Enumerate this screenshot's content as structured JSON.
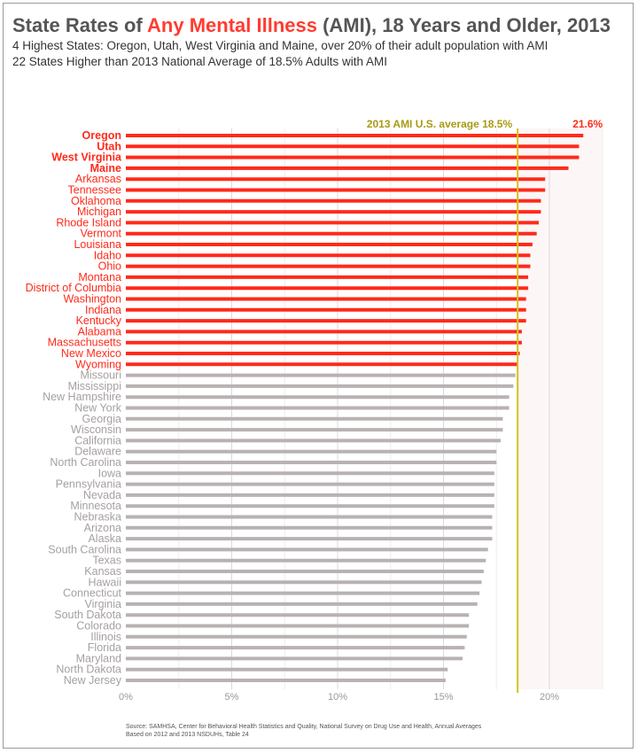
{
  "title": {
    "prefix": "State Rates of ",
    "highlight": "Any Mental Illness",
    "suffix": " (AMI), 18 Years and Older, 2013"
  },
  "subtitle_1": "4 Highest States: Oregon, Utah, West Virginia and Maine, over 20% of their adult population with AMI",
  "subtitle_2": "22 States Higher than 2013 National Average of 18.5% Adults with AMI",
  "source": "Source: SAMHSA, Center for Behavioral Health Statistics and Quality, National Survey on Drug Use and Health, Annual Averages Based on 2012 and 2013 NSDUHs, Table 24",
  "colors": {
    "above_average": "#ff2a1a",
    "below_average": "#b9b2b2",
    "average_line": "#d4c21a",
    "average_label": "#a89a14"
  },
  "chart_data": {
    "type": "bar",
    "orientation": "horizontal",
    "categories": [
      "Oregon",
      "Utah",
      "West Virginia",
      "Maine",
      "Arkansas",
      "Tennessee",
      "Oklahoma",
      "Michigan",
      "Rhode Island",
      "Vermont",
      "Louisiana",
      "Idaho",
      "Ohio",
      "Montana",
      "District of Columbia",
      "Washington",
      "Indiana",
      "Kentucky",
      "Alabama",
      "Massachusetts",
      "New Mexico",
      "Wyoming",
      "Missouri",
      "Mississippi",
      "New Hampshire",
      "New York",
      "Georgia",
      "Wisconsin",
      "California",
      "Delaware",
      "North Carolina",
      "Iowa",
      "Pennsylvania",
      "Nevada",
      "Minnesota",
      "Nebraska",
      "Arizona",
      "Alaska",
      "South Carolina",
      "Texas",
      "Kansas",
      "Hawaii",
      "Connecticut",
      "Virginia",
      "South Dakota",
      "Colorado",
      "Illinois",
      "Florida",
      "Maryland",
      "North Dakota",
      "New Jersey"
    ],
    "values": [
      21.6,
      21.4,
      21.4,
      20.9,
      19.8,
      19.8,
      19.6,
      19.6,
      19.5,
      19.4,
      19.2,
      19.1,
      19.1,
      19.0,
      19.0,
      18.9,
      18.9,
      18.9,
      18.7,
      18.7,
      18.6,
      18.5,
      18.4,
      18.3,
      18.1,
      18.1,
      17.8,
      17.8,
      17.7,
      17.5,
      17.5,
      17.4,
      17.4,
      17.4,
      17.4,
      17.3,
      17.3,
      17.3,
      17.1,
      17.0,
      16.9,
      16.8,
      16.7,
      16.6,
      16.2,
      16.2,
      16.1,
      16.0,
      15.9,
      15.2,
      15.1
    ],
    "bold_categories": [
      "Oregon",
      "Utah",
      "West Virginia",
      "Maine"
    ],
    "highlight_count": 22,
    "average": 18.5,
    "average_label": "2013 AMI U.S. average 18.5%",
    "top_value_label": "21.6%",
    "xlim": [
      0,
      22.5
    ],
    "xticks": [
      0,
      5,
      10,
      15,
      20
    ],
    "xtick_labels": [
      "0%",
      "5%",
      "10%",
      "15%",
      "20%"
    ],
    "grid": true
  }
}
